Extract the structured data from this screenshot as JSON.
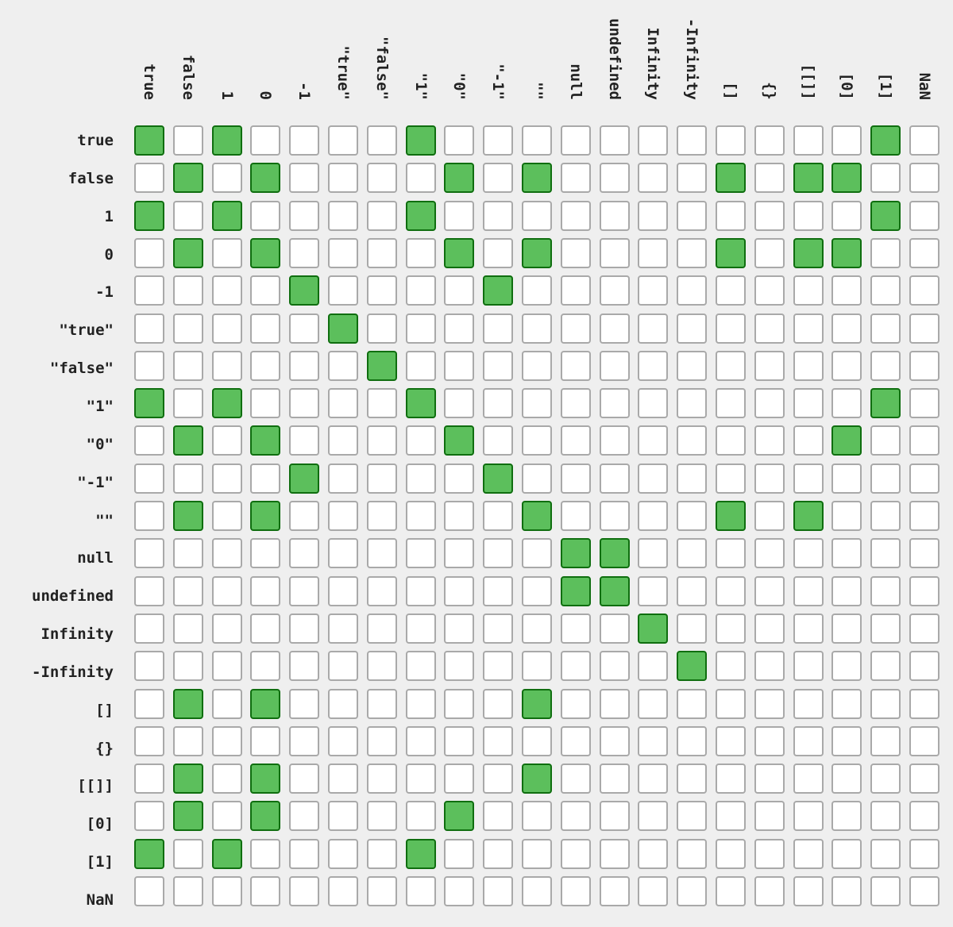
{
  "chart_data": {
    "type": "heatmap",
    "labels": [
      "true",
      "false",
      "1",
      "0",
      "-1",
      "\"true\"",
      "\"false\"",
      "\"1\"",
      "\"0\"",
      "\"-1\"",
      "\"\"",
      "null",
      "undefined",
      "Infinity",
      "-Infinity",
      "[]",
      "{}",
      "[[]]",
      "[0]",
      "[1]",
      "NaN"
    ],
    "matrix": [
      [
        1,
        0,
        1,
        0,
        0,
        0,
        0,
        1,
        0,
        0,
        0,
        0,
        0,
        0,
        0,
        0,
        0,
        0,
        0,
        1,
        0
      ],
      [
        0,
        1,
        0,
        1,
        0,
        0,
        0,
        0,
        1,
        0,
        1,
        0,
        0,
        0,
        0,
        1,
        0,
        1,
        1,
        0,
        0
      ],
      [
        1,
        0,
        1,
        0,
        0,
        0,
        0,
        1,
        0,
        0,
        0,
        0,
        0,
        0,
        0,
        0,
        0,
        0,
        0,
        1,
        0
      ],
      [
        0,
        1,
        0,
        1,
        0,
        0,
        0,
        0,
        1,
        0,
        1,
        0,
        0,
        0,
        0,
        1,
        0,
        1,
        1,
        0,
        0
      ],
      [
        0,
        0,
        0,
        0,
        1,
        0,
        0,
        0,
        0,
        1,
        0,
        0,
        0,
        0,
        0,
        0,
        0,
        0,
        0,
        0,
        0
      ],
      [
        0,
        0,
        0,
        0,
        0,
        1,
        0,
        0,
        0,
        0,
        0,
        0,
        0,
        0,
        0,
        0,
        0,
        0,
        0,
        0,
        0
      ],
      [
        0,
        0,
        0,
        0,
        0,
        0,
        1,
        0,
        0,
        0,
        0,
        0,
        0,
        0,
        0,
        0,
        0,
        0,
        0,
        0,
        0
      ],
      [
        1,
        0,
        1,
        0,
        0,
        0,
        0,
        1,
        0,
        0,
        0,
        0,
        0,
        0,
        0,
        0,
        0,
        0,
        0,
        1,
        0
      ],
      [
        0,
        1,
        0,
        1,
        0,
        0,
        0,
        0,
        1,
        0,
        0,
        0,
        0,
        0,
        0,
        0,
        0,
        0,
        1,
        0,
        0
      ],
      [
        0,
        0,
        0,
        0,
        1,
        0,
        0,
        0,
        0,
        1,
        0,
        0,
        0,
        0,
        0,
        0,
        0,
        0,
        0,
        0,
        0
      ],
      [
        0,
        1,
        0,
        1,
        0,
        0,
        0,
        0,
        0,
        0,
        1,
        0,
        0,
        0,
        0,
        1,
        0,
        1,
        0,
        0,
        0
      ],
      [
        0,
        0,
        0,
        0,
        0,
        0,
        0,
        0,
        0,
        0,
        0,
        1,
        1,
        0,
        0,
        0,
        0,
        0,
        0,
        0,
        0
      ],
      [
        0,
        0,
        0,
        0,
        0,
        0,
        0,
        0,
        0,
        0,
        0,
        1,
        1,
        0,
        0,
        0,
        0,
        0,
        0,
        0,
        0
      ],
      [
        0,
        0,
        0,
        0,
        0,
        0,
        0,
        0,
        0,
        0,
        0,
        0,
        0,
        1,
        0,
        0,
        0,
        0,
        0,
        0,
        0
      ],
      [
        0,
        0,
        0,
        0,
        0,
        0,
        0,
        0,
        0,
        0,
        0,
        0,
        0,
        0,
        1,
        0,
        0,
        0,
        0,
        0,
        0
      ],
      [
        0,
        1,
        0,
        1,
        0,
        0,
        0,
        0,
        0,
        0,
        1,
        0,
        0,
        0,
        0,
        0,
        0,
        0,
        0,
        0,
        0
      ],
      [
        0,
        0,
        0,
        0,
        0,
        0,
        0,
        0,
        0,
        0,
        0,
        0,
        0,
        0,
        0,
        0,
        0,
        0,
        0,
        0,
        0
      ],
      [
        0,
        1,
        0,
        1,
        0,
        0,
        0,
        0,
        0,
        0,
        1,
        0,
        0,
        0,
        0,
        0,
        0,
        0,
        0,
        0,
        0
      ],
      [
        0,
        1,
        0,
        1,
        0,
        0,
        0,
        0,
        1,
        0,
        0,
        0,
        0,
        0,
        0,
        0,
        0,
        0,
        0,
        0,
        0
      ],
      [
        1,
        0,
        1,
        0,
        0,
        0,
        0,
        1,
        0,
        0,
        0,
        0,
        0,
        0,
        0,
        0,
        0,
        0,
        0,
        0,
        0
      ],
      [
        0,
        0,
        0,
        0,
        0,
        0,
        0,
        0,
        0,
        0,
        0,
        0,
        0,
        0,
        0,
        0,
        0,
        0,
        0,
        0,
        0
      ]
    ],
    "colors": {
      "on_fill": "#5cbf5c",
      "on_border": "#0f6e0f",
      "off_fill": "#ffffff",
      "off_border": "#a9a9a9",
      "background": "#efefef"
    }
  }
}
